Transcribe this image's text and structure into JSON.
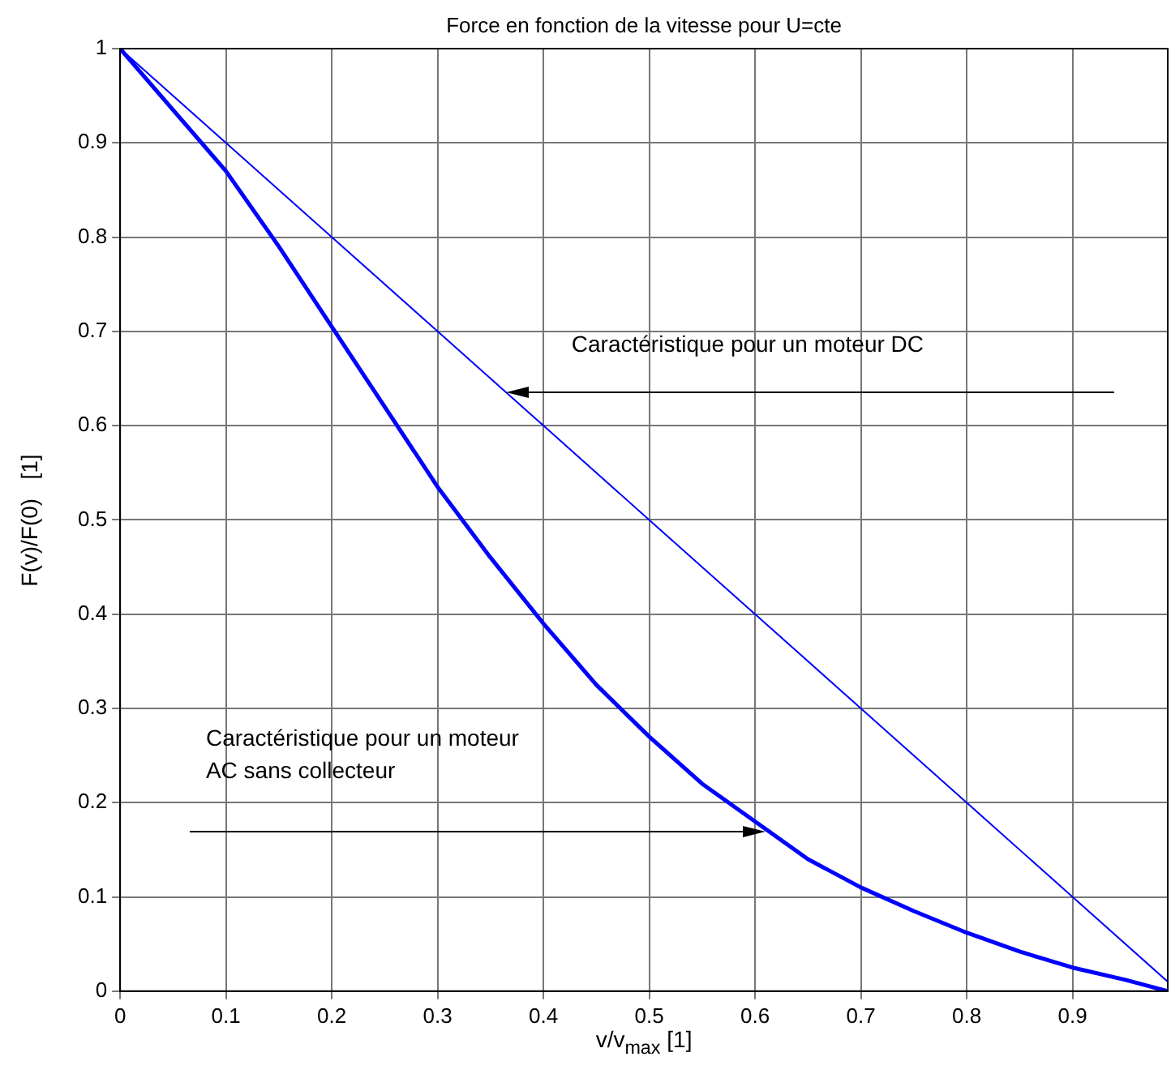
{
  "chart_data": {
    "type": "line",
    "title": "Force en fonction de la vitesse pour U=cte",
    "xlabel": "v/v$_{max}$  [1]",
    "ylabel": "F(v)/F(0)   [1]",
    "xlim": [
      0,
      0.99
    ],
    "xticks": [
      0,
      0.1,
      0.2,
      0.3,
      0.4,
      0.5,
      0.6,
      0.7,
      0.8,
      0.9
    ],
    "ylim": [
      0,
      1
    ],
    "yticks": [
      0,
      0.1,
      0.2,
      0.3,
      0.4,
      0.5,
      0.6,
      0.7,
      0.8,
      0.9,
      1
    ],
    "grid": true,
    "legend": false,
    "marker": "none",
    "line_style": "solid",
    "series": [
      {
        "color": "#0000ff",
        "x": [
          0,
          0.1,
          0.2,
          0.3,
          0.4,
          0.5,
          0.6,
          0.7,
          0.8,
          0.9,
          0.99
        ],
        "values": [
          1,
          0.9,
          0.8,
          0.7,
          0.6,
          0.5,
          0.4,
          0.3,
          0.2,
          0.1,
          0.01
        ]
      },
      {
        "color": "#0000ff",
        "x": [
          0,
          0.05,
          0.1,
          0.15,
          0.2,
          0.25,
          0.3,
          0.35,
          0.4,
          0.45,
          0.5,
          0.55,
          0.6,
          0.65,
          0.7,
          0.75,
          0.8,
          0.85,
          0.9,
          0.95,
          0.99
        ],
        "values": [
          1,
          0.935,
          0.87,
          0.79,
          0.705,
          0.62,
          0.535,
          0.46,
          0.39,
          0.325,
          0.27,
          0.22,
          0.18,
          0.14,
          0.11,
          0.085,
          0.062,
          0.042,
          0.025,
          0.012,
          0
        ]
      }
    ],
    "annotations": [
      "Caractéristique pour un moteur DC",
      "Caractéristique pour un moteur AC sans collecteur"
    ]
  }
}
